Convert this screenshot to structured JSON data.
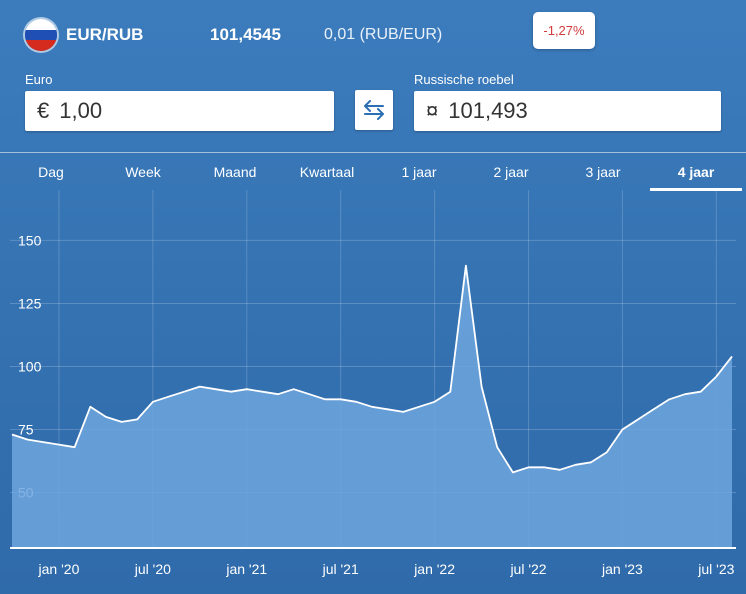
{
  "header": {
    "pair": "EUR/RUB",
    "rate": "101,4545",
    "inverse": "0,01 (RUB/EUR)",
    "change": "-1,27%",
    "flag_colors": [
      "#ffffff",
      "#1f4fb4",
      "#d52b1e"
    ]
  },
  "converter": {
    "from_label": "Euro",
    "from_symbol": "€",
    "from_value": "1,00",
    "to_label": "Russische roebel",
    "to_symbol": "¤",
    "to_value": "101,493",
    "swap_icon": "swap-arrows-icon"
  },
  "tabs": [
    {
      "label": "Dag",
      "active": false
    },
    {
      "label": "Week",
      "active": false
    },
    {
      "label": "Maand",
      "active": false
    },
    {
      "label": "Kwartaal",
      "active": false
    },
    {
      "label": "1 jaar",
      "active": false
    },
    {
      "label": "2 jaar",
      "active": false
    },
    {
      "label": "3 jaar",
      "active": false
    },
    {
      "label": "4 jaar",
      "active": true
    }
  ],
  "colors": {
    "background": "#3674b4",
    "area_fill": "#6ea6de",
    "line": "#ffffff",
    "negative": "#d23b3b"
  },
  "chart_data": {
    "type": "area",
    "x_tick_labels": [
      "jan '20",
      "jul '20",
      "jan '21",
      "jul '21",
      "jan '22",
      "jul '22",
      "jan '23",
      "jul '23"
    ],
    "y_tick_labels": [
      "50",
      "75",
      "100",
      "125",
      "150"
    ],
    "ylim": [
      28,
      170
    ],
    "grid": true,
    "x": [
      "2019-10",
      "2019-11",
      "2019-12",
      "2020-01",
      "2020-02",
      "2020-03",
      "2020-04",
      "2020-05",
      "2020-06",
      "2020-07",
      "2020-08",
      "2020-09",
      "2020-10",
      "2020-11",
      "2020-12",
      "2021-01",
      "2021-02",
      "2021-03",
      "2021-04",
      "2021-05",
      "2021-06",
      "2021-07",
      "2021-08",
      "2021-09",
      "2021-10",
      "2021-11",
      "2021-12",
      "2022-01",
      "2022-02",
      "2022-03",
      "2022-04",
      "2022-05",
      "2022-06",
      "2022-07",
      "2022-08",
      "2022-09",
      "2022-10",
      "2022-11",
      "2022-12",
      "2023-01",
      "2023-02",
      "2023-03",
      "2023-04",
      "2023-05",
      "2023-06",
      "2023-07",
      "2023-08"
    ],
    "values": [
      73,
      71,
      70,
      69,
      68,
      84,
      80,
      78,
      79,
      86,
      88,
      90,
      92,
      91,
      90,
      91,
      90,
      89,
      91,
      89,
      87,
      87,
      86,
      84,
      83,
      82,
      84,
      86,
      90,
      140,
      92,
      68,
      58,
      60,
      60,
      59,
      61,
      62,
      66,
      75,
      79,
      83,
      87,
      89,
      90,
      96,
      104
    ]
  }
}
